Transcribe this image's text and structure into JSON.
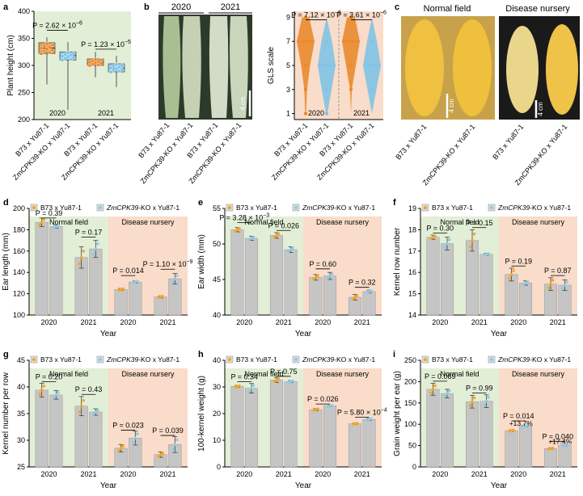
{
  "figure": {
    "panel_letters": [
      "a",
      "b",
      "c",
      "d",
      "e",
      "f",
      "g",
      "h",
      "i"
    ],
    "genotypes": [
      "B73 x Yu87-1",
      "ZmCPK39-KO x Yu87-1"
    ],
    "x_axis_title": "Year",
    "conditions": [
      "Normal field",
      "Disease nursery"
    ],
    "scale_bar_label": "4 cm",
    "legend": {
      "b73": "B73 x Yu87-1",
      "ko_prefix": "ZmCPK39",
      "ko_suffix": "-KO x Yu87-1"
    },
    "colors": {
      "green_bg": "#e2efd6",
      "salmon_bg": "#f9dcc9",
      "bar": "#c5c5c5",
      "b73_dot": "#f5a623",
      "ko_dot": "#8ccbe8",
      "orange": "#e88a2c",
      "blue": "#7fc3e6",
      "err": "#444444"
    }
  },
  "panel_b_photo": {
    "years": [
      "2020",
      "2021"
    ]
  },
  "panel_c_photo": {
    "titles": [
      "Normal field",
      "Disease nursery"
    ]
  },
  "chart_data": [
    {
      "id": "a",
      "type": "box",
      "ylabel": "Plant height (cm)",
      "ylim": [
        200,
        400
      ],
      "yticks": [
        200,
        250,
        300,
        350,
        400
      ],
      "groups": [
        "2020",
        "2021"
      ],
      "categories": [
        "B73 x Yu87-1",
        "ZmCPK39-KO x Yu87-1",
        "B73 x Yu87-1",
        "ZmCPK39-KO x Yu87-1"
      ],
      "boxes": [
        {
          "min": 265,
          "q1": 322,
          "median": 332,
          "q3": 342,
          "max": 352,
          "color": "orange"
        },
        {
          "min": 218,
          "q1": 310,
          "median": 318,
          "q3": 325,
          "max": 343,
          "color": "blue"
        },
        {
          "min": 278,
          "q1": 300,
          "median": 305,
          "q3": 312,
          "max": 325,
          "color": "orange"
        },
        {
          "min": 260,
          "q1": 288,
          "median": 295,
          "q3": 303,
          "max": 318,
          "color": "blue"
        }
      ],
      "pvalues": [
        {
          "label": "P = 2.62 × 10",
          "sup": "−6",
          "pair": [
            0,
            1
          ],
          "y": 365
        },
        {
          "label": "P = 1.23 × 10",
          "sup": "−5",
          "pair": [
            2,
            3
          ],
          "y": 330
        }
      ]
    },
    {
      "id": "b",
      "type": "violin",
      "ylabel": "GLS scale",
      "ylim": [
        0.5,
        9.5
      ],
      "yticks": [
        1,
        3,
        5,
        7,
        9
      ],
      "groups": [
        "2020",
        "2021"
      ],
      "categories": [
        "B73 x Yu87-1",
        "ZmCPK39-KO x Yu87-1",
        "B73 x Yu87-1",
        "ZmCPK39-KO x Yu87-1"
      ],
      "violins": [
        {
          "color": "orange",
          "median": 7,
          "density": [
            [
              1,
              0.05
            ],
            [
              3,
              0.15
            ],
            [
              5,
              0.5
            ],
            [
              7,
              1.0
            ],
            [
              9,
              0.4
            ]
          ]
        },
        {
          "color": "blue",
          "median": 5,
          "density": [
            [
              1,
              0.08
            ],
            [
              3,
              0.55
            ],
            [
              5,
              1.0
            ],
            [
              7,
              0.6
            ],
            [
              9,
              0.0
            ]
          ]
        },
        {
          "color": "orange",
          "median": 7,
          "density": [
            [
              1,
              0.0
            ],
            [
              3,
              0.1
            ],
            [
              5,
              0.55
            ],
            [
              7,
              1.0
            ],
            [
              9,
              0.45
            ]
          ]
        },
        {
          "color": "blue",
          "median": 5,
          "density": [
            [
              1,
              0.0
            ],
            [
              3,
              0.5
            ],
            [
              5,
              1.0
            ],
            [
              7,
              0.55
            ],
            [
              9,
              0.0
            ]
          ]
        }
      ],
      "pvalues": [
        {
          "label": "P = 7.12 × 10",
          "sup": "−6",
          "pair": [
            0,
            1
          ],
          "y": 8.8
        },
        {
          "label": "P = 3.61 × 10",
          "sup": "−6",
          "pair": [
            2,
            3
          ],
          "y": 8.8
        }
      ]
    },
    {
      "id": "d",
      "type": "bar",
      "ylabel": "Ear length (mm)",
      "ylim": [
        100,
        200
      ],
      "yticks": [
        100,
        120,
        140,
        160,
        180,
        200
      ],
      "years": [
        "2020",
        "2021",
        "2020",
        "2021"
      ],
      "values": [
        [
          187,
          183
        ],
        [
          154,
          162
        ],
        [
          124,
          131
        ],
        [
          117,
          134
        ]
      ],
      "errors": [
        [
          4,
          1.5
        ],
        [
          10,
          8
        ],
        [
          1,
          1
        ],
        [
          1,
          5
        ]
      ],
      "pvalues": [
        {
          "label": "P = 0.39",
          "y": 191
        },
        {
          "label": "P = 0.17",
          "y": 173
        },
        {
          "label": "P = 0.014",
          "y": 137
        },
        {
          "label": "P = 1.10 × 10",
          "sup": "−9",
          "y": 143
        }
      ]
    },
    {
      "id": "e",
      "type": "bar",
      "ylabel": "Ear width (mm)",
      "ylim": [
        40,
        55
      ],
      "yticks": [
        40,
        45,
        50,
        55
      ],
      "years": [
        "2020",
        "2021",
        "2020",
        "2021"
      ],
      "values": [
        [
          52.0,
          50.8
        ],
        [
          51.2,
          49.2
        ],
        [
          45.3,
          45.5
        ],
        [
          42.5,
          43.3
        ]
      ],
      "errors": [
        [
          0.3,
          0.3
        ],
        [
          0.4,
          0.4
        ],
        [
          0.4,
          0.5
        ],
        [
          0.4,
          0.2
        ]
      ],
      "pvalues": [
        {
          "label": "P = 3.28 × 10",
          "sup": "−3",
          "y": 53.0
        },
        {
          "label": "P = 0.026",
          "y": 51.9
        },
        {
          "label": "P = 0.60",
          "y": 46.5
        },
        {
          "label": "P = 0.32",
          "y": 43.9
        }
      ]
    },
    {
      "id": "f",
      "type": "bar",
      "ylabel": "Kernel row number",
      "ylim": [
        14,
        19
      ],
      "yticks": [
        14,
        15,
        16,
        17,
        18,
        19
      ],
      "years": [
        "2020",
        "2021",
        "2020",
        "2021"
      ],
      "values": [
        [
          17.65,
          17.35
        ],
        [
          17.5,
          16.85
        ],
        [
          15.9,
          15.5
        ],
        [
          15.45,
          15.4
        ]
      ],
      "errors": [
        [
          0.1,
          0.3
        ],
        [
          0.5,
          0.05
        ],
        [
          0.3,
          0.1
        ],
        [
          0.3,
          0.25
        ]
      ],
      "pvalues": [
        {
          "label": "P = 0.30",
          "y": 17.85
        },
        {
          "label": "P = 0.15",
          "y": 18.1
        },
        {
          "label": "P = 0.19",
          "y": 16.3
        },
        {
          "label": "P = 0.87",
          "y": 15.85
        }
      ]
    },
    {
      "id": "g",
      "type": "bar",
      "ylabel": "Kernel number per row",
      "ylim": [
        25,
        45
      ],
      "yticks": [
        25,
        30,
        35,
        40,
        45
      ],
      "years": [
        "2020",
        "2021",
        "2020",
        "2021"
      ],
      "values": [
        [
          39.4,
          38.5
        ],
        [
          36.4,
          35.3
        ],
        [
          28.5,
          30.4
        ],
        [
          27.3,
          29.2
        ]
      ],
      "errors": [
        [
          1.3,
          0.8
        ],
        [
          1.8,
          0.6
        ],
        [
          0.7,
          1.3
        ],
        [
          0.5,
          1.5
        ]
      ],
      "pvalues": [
        {
          "label": "P = 0.20",
          "y": 41.0
        },
        {
          "label": "P = 0.43",
          "y": 38.6
        },
        {
          "label": "P = 0.023",
          "y": 31.9
        },
        {
          "label": "P = 0.039",
          "y": 30.9
        }
      ]
    },
    {
      "id": "h",
      "type": "bar",
      "ylabel": "100-kernel weight (g)",
      "ylim": [
        0,
        40
      ],
      "yticks": [
        0,
        10,
        20,
        30,
        40
      ],
      "years": [
        "2020",
        "2021",
        "2020",
        "2021"
      ],
      "values": [
        [
          30.2,
          29.5
        ],
        [
          32.6,
          32.0
        ],
        [
          21.5,
          22.9
        ],
        [
          16.2,
          17.8
        ]
      ],
      "errors": [
        [
          0.4,
          1.8
        ],
        [
          0.9,
          0.4
        ],
        [
          0.4,
          0.3
        ],
        [
          0.3,
          0.4
        ]
      ],
      "pvalues": [
        {
          "label": "P = 0.34",
          "y": 32.0
        },
        {
          "label": "P = 0.75",
          "y": 34.0
        },
        {
          "label": "P = 0.026",
          "y": 23.6
        },
        {
          "label": "P = 5.80 × 10",
          "sup": "−4",
          "y": 18.6
        }
      ]
    },
    {
      "id": "i",
      "type": "bar",
      "ylabel": "Grain weight per ear (g)",
      "ylim": [
        0,
        250
      ],
      "yticks": [
        0,
        50,
        100,
        150,
        200,
        250
      ],
      "years": [
        "2020",
        "2021",
        "2020",
        "2021"
      ],
      "values": [
        [
          182,
          172
        ],
        [
          153,
          154
        ],
        [
          85,
          96
        ],
        [
          43,
          51
        ]
      ],
      "errors": [
        [
          14,
          10
        ],
        [
          15,
          15
        ],
        [
          2,
          2
        ],
        [
          2,
          2
        ]
      ],
      "pvalues": [
        {
          "label": "P = 0.089",
          "y": 201
        },
        {
          "label": "P = 0.99",
          "y": 173
        },
        {
          "label": "P = 0.014",
          "y": 108
        },
        {
          "label": "P = 0.040",
          "y": 60
        }
      ],
      "annotations": [
        {
          "label": "+13.7%",
          "group": 2,
          "y": 93
        },
        {
          "label": "+17.4%",
          "group": 3,
          "y": 50
        }
      ]
    }
  ]
}
